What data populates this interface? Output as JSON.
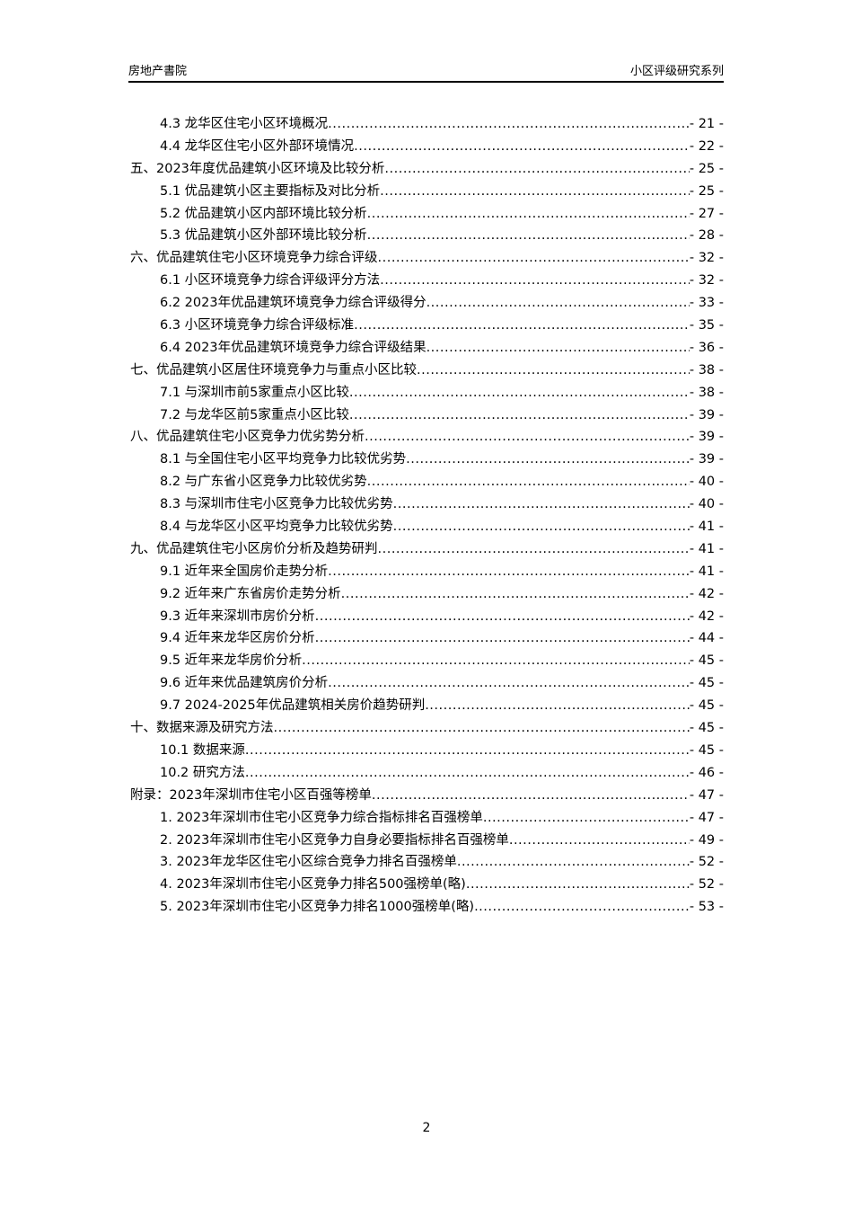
{
  "header": {
    "left": "房地产書院",
    "right": "小区评级研究系列"
  },
  "toc": [
    {
      "level": 1,
      "title": "4.3 龙华区住宅小区环境概况",
      "page": "- 21 -"
    },
    {
      "level": 1,
      "title": "4.4 龙华区住宅小区外部环境情况",
      "page": "- 22 -"
    },
    {
      "level": 0,
      "title": "五、2023年度优品建筑小区环境及比较分析",
      "page": "- 25 -"
    },
    {
      "level": 1,
      "title": "5.1 优品建筑小区主要指标及对比分析",
      "page": "- 25 -"
    },
    {
      "level": 1,
      "title": "5.2 优品建筑小区内部环境比较分析",
      "page": "- 27 -"
    },
    {
      "level": 1,
      "title": "5.3 优品建筑小区外部环境比较分析",
      "page": "- 28 -"
    },
    {
      "level": 0,
      "title": "六、优品建筑住宅小区环境竞争力综合评级",
      "page": "- 32 -"
    },
    {
      "level": 1,
      "title": "6.1 小区环境竞争力综合评级评分方法",
      "page": "- 32 -"
    },
    {
      "level": 1,
      "title": "6.2 2023年优品建筑环境竞争力综合评级得分",
      "page": "- 33 -"
    },
    {
      "level": 1,
      "title": "6.3 小区环境竞争力综合评级标准",
      "page": "- 35 -"
    },
    {
      "level": 1,
      "title": "6.4 2023年优品建筑环境竞争力综合评级结果",
      "page": "- 36 -"
    },
    {
      "level": 0,
      "title": "七、优品建筑小区居住环境竞争力与重点小区比较",
      "page": "- 38 -"
    },
    {
      "level": 1,
      "title": "7.1 与深圳市前5家重点小区比较",
      "page": "- 38 -"
    },
    {
      "level": 1,
      "title": "7.2 与龙华区前5家重点小区比较",
      "page": "- 39 -"
    },
    {
      "level": 0,
      "title": "八、优品建筑住宅小区竞争力优劣势分析",
      "page": "- 39 -"
    },
    {
      "level": 1,
      "title": "8.1 与全国住宅小区平均竞争力比较优劣势",
      "page": "- 39 -"
    },
    {
      "level": 1,
      "title": "8.2 与广东省小区竞争力比较优劣势",
      "page": "- 40 -"
    },
    {
      "level": 1,
      "title": "8.3 与深圳市住宅小区竞争力比较优劣势",
      "page": "- 40 -"
    },
    {
      "level": 1,
      "title": "8.4 与龙华区小区平均竞争力比较优劣势",
      "page": "- 41 -"
    },
    {
      "level": 0,
      "title": "九、优品建筑住宅小区房价分析及趋势研判",
      "page": "- 41 -"
    },
    {
      "level": 1,
      "title": "9.1 近年来全国房价走势分析",
      "page": "- 41 -"
    },
    {
      "level": 1,
      "title": "9.2 近年来广东省房价走势分析",
      "page": "- 42 -"
    },
    {
      "level": 1,
      "title": "9.3 近年来深圳市房价分析",
      "page": "- 42 -"
    },
    {
      "level": 1,
      "title": "9.4 近年来龙华区房价分析",
      "page": "- 44 -"
    },
    {
      "level": 1,
      "title": "9.5 近年来龙华房价分析",
      "page": "- 45 -"
    },
    {
      "level": 1,
      "title": "9.6 近年来优品建筑房价分析",
      "page": "- 45 -"
    },
    {
      "level": 1,
      "title": "9.7 2024-2025年优品建筑相关房价趋势研判",
      "page": "- 45 -"
    },
    {
      "level": 0,
      "title": "十、数据来源及研究方法",
      "page": "- 45 -"
    },
    {
      "level": 1,
      "title": "10.1 数据来源",
      "page": "- 45 -"
    },
    {
      "level": 1,
      "title": "10.2 研究方法",
      "page": "- 46 -"
    },
    {
      "level": 0,
      "title": "附录：2023年深圳市住宅小区百强等榜单",
      "page": "- 47 -"
    },
    {
      "level": 1,
      "title": "1. 2023年深圳市住宅小区竞争力综合指标排名百强榜单",
      "page": "- 47 -"
    },
    {
      "level": 1,
      "title": "2. 2023年深圳市住宅小区竞争力自身必要指标排名百强榜单",
      "page": "- 49 -"
    },
    {
      "level": 1,
      "title": "3. 2023年龙华区住宅小区综合竞争力排名百强榜单",
      "page": "- 52 -"
    },
    {
      "level": 1,
      "title": "4. 2023年深圳市住宅小区竞争力排名500强榜单(略)",
      "page": "- 52 -"
    },
    {
      "level": 1,
      "title": "5. 2023年深圳市住宅小区竞争力排名1000强榜单(略)",
      "page": "- 53 -"
    }
  ],
  "footer": {
    "page_number": "2"
  }
}
